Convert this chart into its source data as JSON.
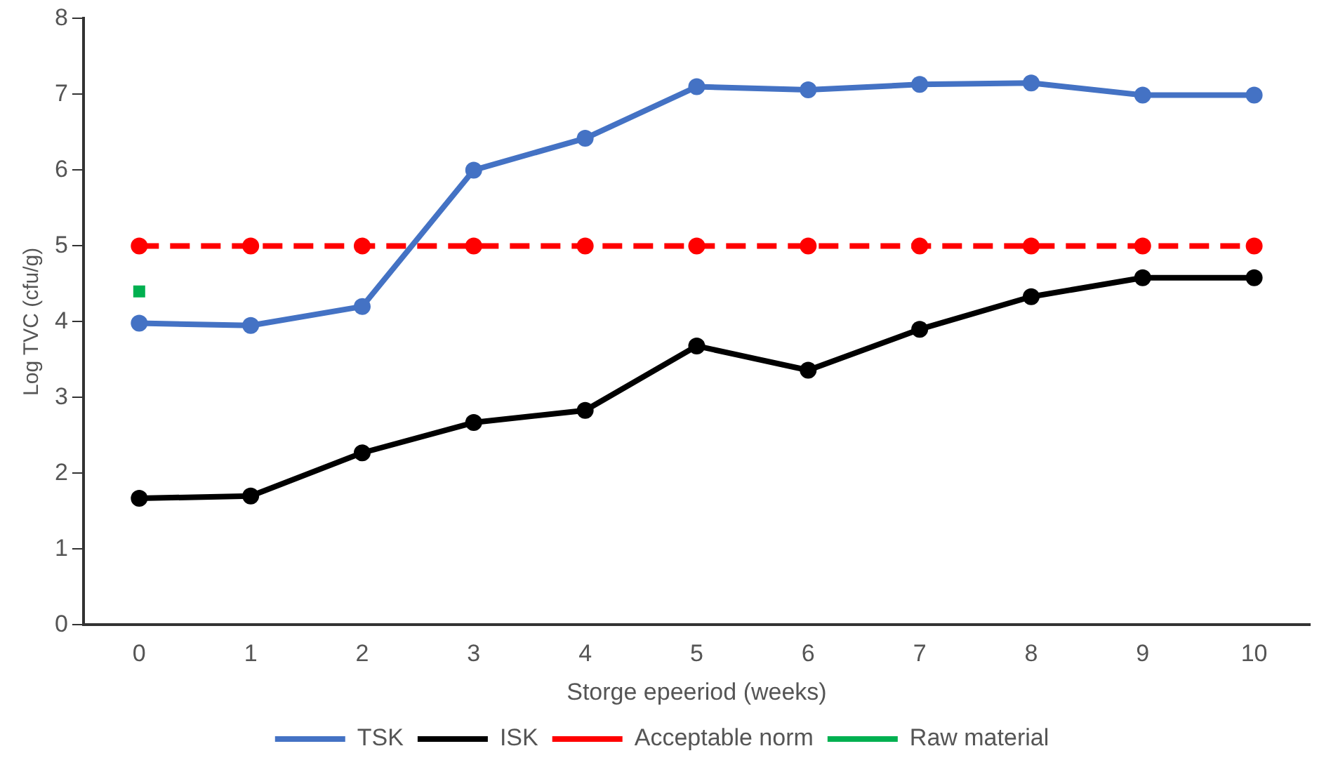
{
  "chart_data": {
    "type": "line",
    "xlabel": "Storge epeeriod (weeks)",
    "ylabel": "Log TVC (cfu/g)",
    "categories": [
      "0",
      "1",
      "2",
      "3",
      "4",
      "5",
      "6",
      "7",
      "8",
      "9",
      "10"
    ],
    "ylim": [
      0,
      8
    ],
    "yticks": [
      0,
      1,
      2,
      3,
      4,
      5,
      6,
      7,
      8
    ],
    "grid": false,
    "legend": "bottom",
    "marker": "circle",
    "line_style": "solid",
    "series": [
      {
        "name": "TSK",
        "color": "#4472c4",
        "values": [
          3.98,
          3.95,
          4.2,
          6.0,
          6.42,
          7.1,
          7.06,
          7.13,
          7.15,
          6.99,
          6.99
        ]
      },
      {
        "name": "ISK",
        "color": "#000000",
        "values": [
          1.67,
          1.7,
          2.27,
          2.67,
          2.83,
          3.68,
          3.36,
          3.9,
          4.33,
          4.58,
          4.58
        ]
      },
      {
        "name": "Acceptable norm",
        "color": "#ff0000",
        "line_style": "dashed",
        "values": [
          5,
          5,
          5,
          5,
          5,
          5,
          5,
          5,
          5,
          5,
          5
        ]
      },
      {
        "name": "Raw material",
        "color": "#00b050",
        "marker": "square",
        "values": [
          4.4,
          null,
          null,
          null,
          null,
          null,
          null,
          null,
          null,
          null,
          null
        ]
      }
    ]
  }
}
